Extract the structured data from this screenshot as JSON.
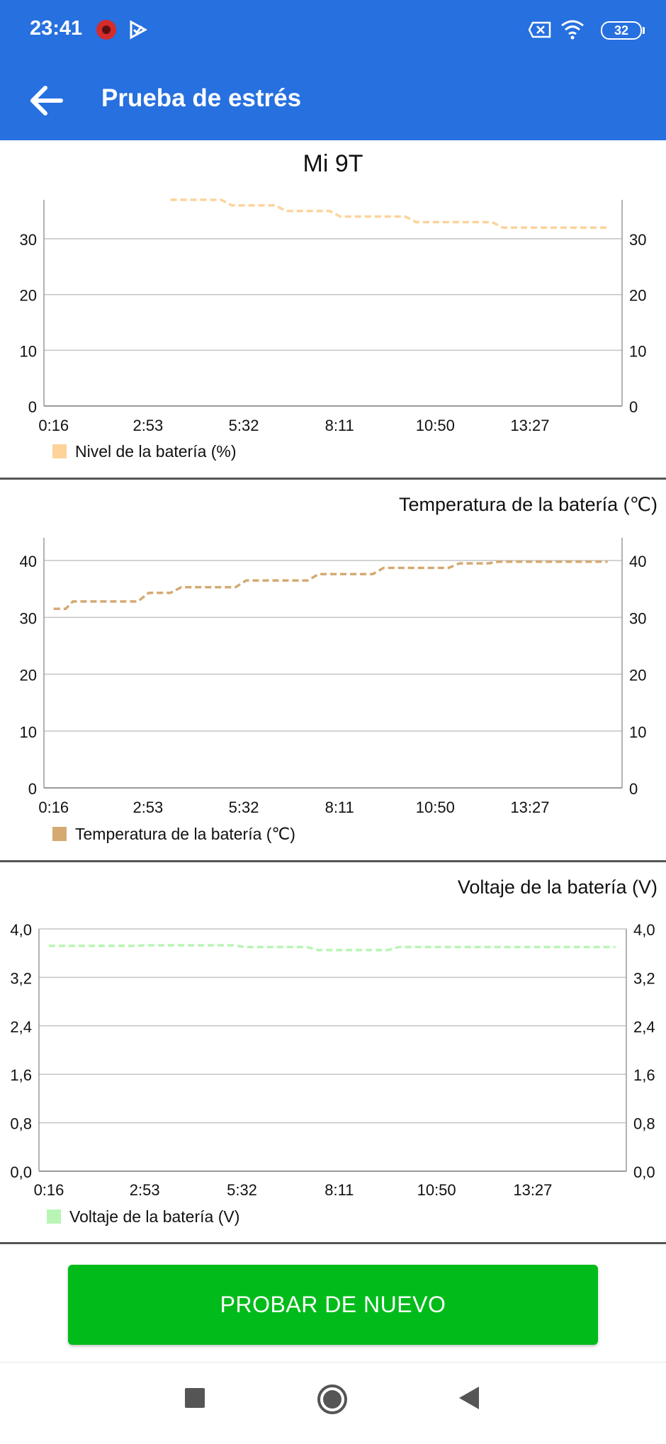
{
  "status_bar": {
    "time": "23:41",
    "icons": [
      "notification-app-icon",
      "notification-check-icon",
      "sim-x-icon",
      "wifi-icon"
    ],
    "battery_level": "32"
  },
  "header": {
    "title": "Prueba de estrés",
    "back_icon": "arrow-left-icon"
  },
  "device_name": "Mi 9T",
  "x_ticks": [
    "0:16",
    "2:53",
    "5:32",
    "8:11",
    "10:50",
    "13:27"
  ],
  "chart_data": [
    {
      "type": "line",
      "title": "",
      "legend": "Nivel de la batería (%)",
      "color": "#fdd39a",
      "ylim": [
        0,
        37
      ],
      "y_ticks": [
        "0",
        "10",
        "20",
        "30"
      ],
      "y_tick_values": [
        0,
        10,
        20,
        30
      ],
      "x_labels": [
        "0:16",
        "2:53",
        "5:32",
        "8:11",
        "10:50",
        "13:27"
      ],
      "series": [
        {
          "x": [
            3.5,
            4.9,
            5.2,
            6.4,
            6.7,
            7.9,
            8.2,
            10.0,
            10.3,
            12.4,
            12.7,
            13.5,
            13.8,
            15.6
          ],
          "y": [
            37,
            37,
            36,
            36,
            35,
            35,
            34,
            34,
            33,
            33,
            32,
            32,
            32,
            32
          ]
        }
      ],
      "grid": true,
      "legend_position": "bottom-left"
    },
    {
      "type": "line",
      "title": "Temperatura de la batería (℃)",
      "legend": "Temperatura de la batería (℃)",
      "color": "#d4aa72",
      "ylim": [
        0,
        44
      ],
      "y_ticks": [
        "0",
        "10",
        "20",
        "30",
        "40"
      ],
      "y_tick_values": [
        0,
        10,
        20,
        30,
        40
      ],
      "x_labels": [
        "0:16",
        "2:53",
        "5:32",
        "8:11",
        "10:50",
        "13:27"
      ],
      "series": [
        {
          "x": [
            0.27,
            0.6,
            0.8,
            2.6,
            2.9,
            3.5,
            3.8,
            5.3,
            5.6,
            7.3,
            7.6,
            9.1,
            9.4,
            11.2,
            11.5,
            12.3,
            12.6,
            15.6
          ],
          "y": [
            31.5,
            31.5,
            32.8,
            32.8,
            34.3,
            34.3,
            35.3,
            35.3,
            36.5,
            36.5,
            37.6,
            37.6,
            38.7,
            38.7,
            39.5,
            39.5,
            39.8,
            39.8
          ]
        }
      ],
      "grid": true,
      "legend_position": "bottom-left"
    },
    {
      "type": "line",
      "title": "Voltaje de la batería (V)",
      "legend": "Voltaje de la batería (V)",
      "color": "#b8f5b4",
      "ylim": [
        0,
        4.0
      ],
      "y_ticks": [
        "0,0",
        "0,8",
        "1,6",
        "2,4",
        "3,2",
        "4,0"
      ],
      "y_tick_values": [
        0,
        0.8,
        1.6,
        2.4,
        3.2,
        4.0
      ],
      "x_labels": [
        "0:16",
        "2:53",
        "5:32",
        "8:11",
        "10:50",
        "13:27"
      ],
      "series": [
        {
          "x": [
            0.27,
            2.6,
            2.9,
            5.3,
            5.6,
            7.3,
            7.6,
            9.5,
            9.8,
            15.7
          ],
          "y": [
            3.72,
            3.72,
            3.73,
            3.73,
            3.7,
            3.7,
            3.65,
            3.65,
            3.7,
            3.7
          ]
        }
      ],
      "grid": true,
      "legend_position": "bottom-left"
    }
  ],
  "actions": {
    "retry_label": "PROBAR DE NUEVO"
  },
  "nav_bar": {
    "items": [
      "recent-apps-icon",
      "home-icon",
      "back-triangle-icon"
    ]
  }
}
